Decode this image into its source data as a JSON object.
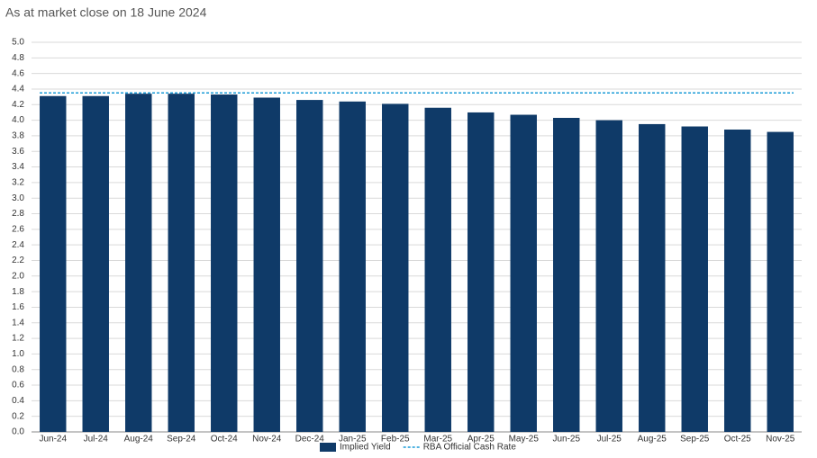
{
  "chart_data": {
    "type": "bar",
    "title": "As at market close on 18 June 2024",
    "categories": [
      "Jun-24",
      "Jul-24",
      "Aug-24",
      "Sep-24",
      "Oct-24",
      "Nov-24",
      "Dec-24",
      "Jan-25",
      "Feb-25",
      "Mar-25",
      "Apr-25",
      "May-25",
      "Jun-25",
      "Jul-25",
      "Aug-25",
      "Sep-25",
      "Oct-25",
      "Nov-25"
    ],
    "series": [
      {
        "name": "Implied Yield",
        "color": "#0f3a68",
        "values": [
          4.31,
          4.31,
          4.34,
          4.34,
          4.33,
          4.29,
          4.26,
          4.24,
          4.21,
          4.16,
          4.1,
          4.07,
          4.03,
          4.0,
          3.95,
          3.92,
          3.88,
          3.85
        ]
      }
    ],
    "reference_line": {
      "name": "RBA Official Cash Rate",
      "color": "#1a9bd7",
      "value": 4.35,
      "style": "dashed"
    },
    "ylim": [
      0,
      5
    ],
    "yticks": [
      {
        "value": 0,
        "label": "0.0"
      },
      0.2,
      0.4,
      0.6,
      0.8,
      {
        "value": 1,
        "label": "1.0"
      },
      1.2,
      1.4,
      1.6,
      1.8,
      {
        "value": 2,
        "label": "2.0"
      },
      2.2,
      2.4,
      2.6,
      2.8,
      {
        "value": 3,
        "label": "3.0"
      },
      3.2,
      3.4,
      3.6,
      3.8,
      {
        "value": 4,
        "label": "4.0"
      },
      4.2,
      4.4,
      4.6,
      4.8,
      {
        "value": 5,
        "label": "5.0"
      }
    ],
    "grid": true,
    "legend": "bottom"
  }
}
